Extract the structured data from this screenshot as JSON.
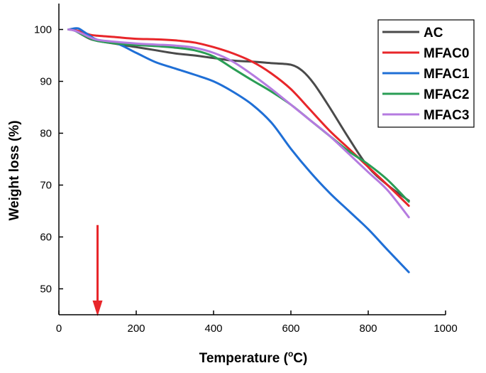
{
  "chart_data": {
    "type": "line",
    "xlabel": "Temperature (",
    "xlabel_sup": "o",
    "xlabel_suffix": "C)",
    "ylabel": "Weight loss (%)",
    "xlim": [
      0,
      1000
    ],
    "ylim": [
      45,
      105
    ],
    "xticks": [
      0,
      200,
      400,
      600,
      800,
      1000
    ],
    "yticks": [
      50,
      60,
      70,
      80,
      90,
      100
    ],
    "grid": false,
    "legend_position": "top-right",
    "annotation": {
      "type": "arrow",
      "color": "#e8262a",
      "x": 100,
      "y_from": 62.3,
      "y_to": 45
    },
    "series": [
      {
        "name": "AC",
        "color": "#4a4a4a",
        "x": [
          25,
          40,
          60,
          80,
          100,
          150,
          200,
          250,
          300,
          350,
          400,
          450,
          500,
          550,
          600,
          630,
          660,
          700,
          750,
          800,
          850,
          905
        ],
        "y": [
          100,
          99.9,
          99,
          98.2,
          97.8,
          97.2,
          96.6,
          96.0,
          95.4,
          95.0,
          94.5,
          94.0,
          93.8,
          93.5,
          93.2,
          92.0,
          89.5,
          85.0,
          79.0,
          73.5,
          70.0,
          67.0
        ]
      },
      {
        "name": "MFAC0",
        "color": "#e8262a",
        "x": [
          25,
          40,
          60,
          80,
          100,
          150,
          200,
          250,
          300,
          350,
          400,
          450,
          500,
          550,
          600,
          650,
          700,
          750,
          800,
          850,
          905
        ],
        "y": [
          100,
          99.9,
          99.5,
          99.0,
          98.8,
          98.5,
          98.2,
          98.1,
          97.9,
          97.5,
          96.6,
          95.4,
          93.8,
          91.5,
          88.5,
          84.5,
          80.5,
          77.0,
          73.5,
          70.0,
          66.0
        ]
      },
      {
        "name": "MFAC1",
        "color": "#1f6fd6",
        "x": [
          25,
          40,
          50,
          60,
          80,
          100,
          150,
          200,
          250,
          300,
          350,
          400,
          450,
          500,
          550,
          600,
          650,
          700,
          750,
          800,
          850,
          905
        ],
        "y": [
          100,
          100.2,
          100.2,
          99.8,
          98.8,
          98.0,
          97.3,
          95.5,
          93.7,
          92.5,
          91.3,
          90.0,
          88.0,
          85.5,
          82.0,
          77.0,
          72.5,
          68.5,
          65.0,
          61.5,
          57.5,
          53.2
        ]
      },
      {
        "name": "MFAC2",
        "color": "#2a9d55",
        "x": [
          25,
          40,
          60,
          80,
          100,
          150,
          200,
          250,
          300,
          350,
          400,
          450,
          500,
          550,
          600,
          650,
          700,
          750,
          800,
          850,
          905
        ],
        "y": [
          100,
          99.8,
          99.0,
          98.3,
          97.8,
          97.3,
          97.0,
          96.8,
          96.5,
          96.0,
          94.8,
          92.5,
          90.2,
          88.0,
          85.5,
          82.5,
          79.5,
          76.5,
          74.0,
          71.0,
          66.8
        ]
      },
      {
        "name": "MFAC3",
        "color": "#b57be0",
        "x": [
          25,
          40,
          60,
          80,
          100,
          150,
          200,
          250,
          300,
          350,
          400,
          450,
          500,
          550,
          600,
          650,
          700,
          750,
          800,
          850,
          905
        ],
        "y": [
          100,
          99.8,
          99.2,
          98.5,
          98.0,
          97.6,
          97.3,
          97.1,
          96.9,
          96.5,
          95.5,
          93.8,
          91.3,
          88.5,
          85.5,
          82.5,
          79.5,
          76.0,
          72.5,
          69.0,
          63.8
        ]
      }
    ]
  }
}
